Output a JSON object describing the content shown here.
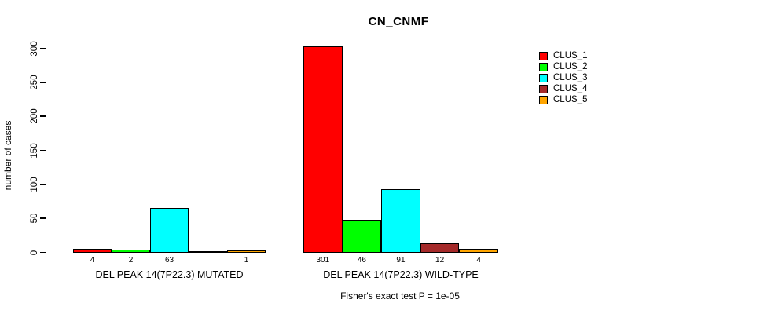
{
  "title": "CN_CNMF",
  "y_axis": {
    "label": "number of cases",
    "ticks": [
      0,
      50,
      100,
      150,
      200,
      250,
      300
    ]
  },
  "footer": "Fisher's exact test P = 1e-05",
  "legend": {
    "items": [
      {
        "label": "CLUS_1",
        "color": "#FF0000"
      },
      {
        "label": "CLUS_2",
        "color": "#00FF00"
      },
      {
        "label": "CLUS_3",
        "color": "#00FFFF"
      },
      {
        "label": "CLUS_4",
        "color": "#A52A2A"
      },
      {
        "label": "CLUS_5",
        "color": "#FFA500"
      }
    ]
  },
  "chart_data": {
    "type": "bar",
    "title": "CN_CNMF",
    "xlabel": "",
    "ylabel": "number of cases",
    "ylim": [
      0,
      300
    ],
    "y_ticks": [
      0,
      50,
      100,
      150,
      200,
      250,
      300
    ],
    "grid": false,
    "legend_position": "top-right",
    "categories": [
      "DEL PEAK 14(7P22.3) MUTATED",
      "DEL PEAK 14(7P22.3) WILD-TYPE"
    ],
    "series": [
      {
        "name": "CLUS_1",
        "color": "#FF0000",
        "values": [
          4,
          301
        ]
      },
      {
        "name": "CLUS_2",
        "color": "#00FF00",
        "values": [
          2,
          46
        ]
      },
      {
        "name": "CLUS_3",
        "color": "#00FFFF",
        "values": [
          63,
          91
        ]
      },
      {
        "name": "CLUS_4",
        "color": "#A52A2A",
        "values": [
          0,
          12
        ]
      },
      {
        "name": "CLUS_5",
        "color": "#FFA500",
        "values": [
          1,
          4
        ]
      }
    ],
    "bar_labels": [
      [
        "4",
        "2",
        "63",
        "",
        "1"
      ],
      [
        "301",
        "46",
        "91",
        "12",
        "4"
      ]
    ],
    "annotation": "Fisher's exact test P = 1e-05"
  }
}
